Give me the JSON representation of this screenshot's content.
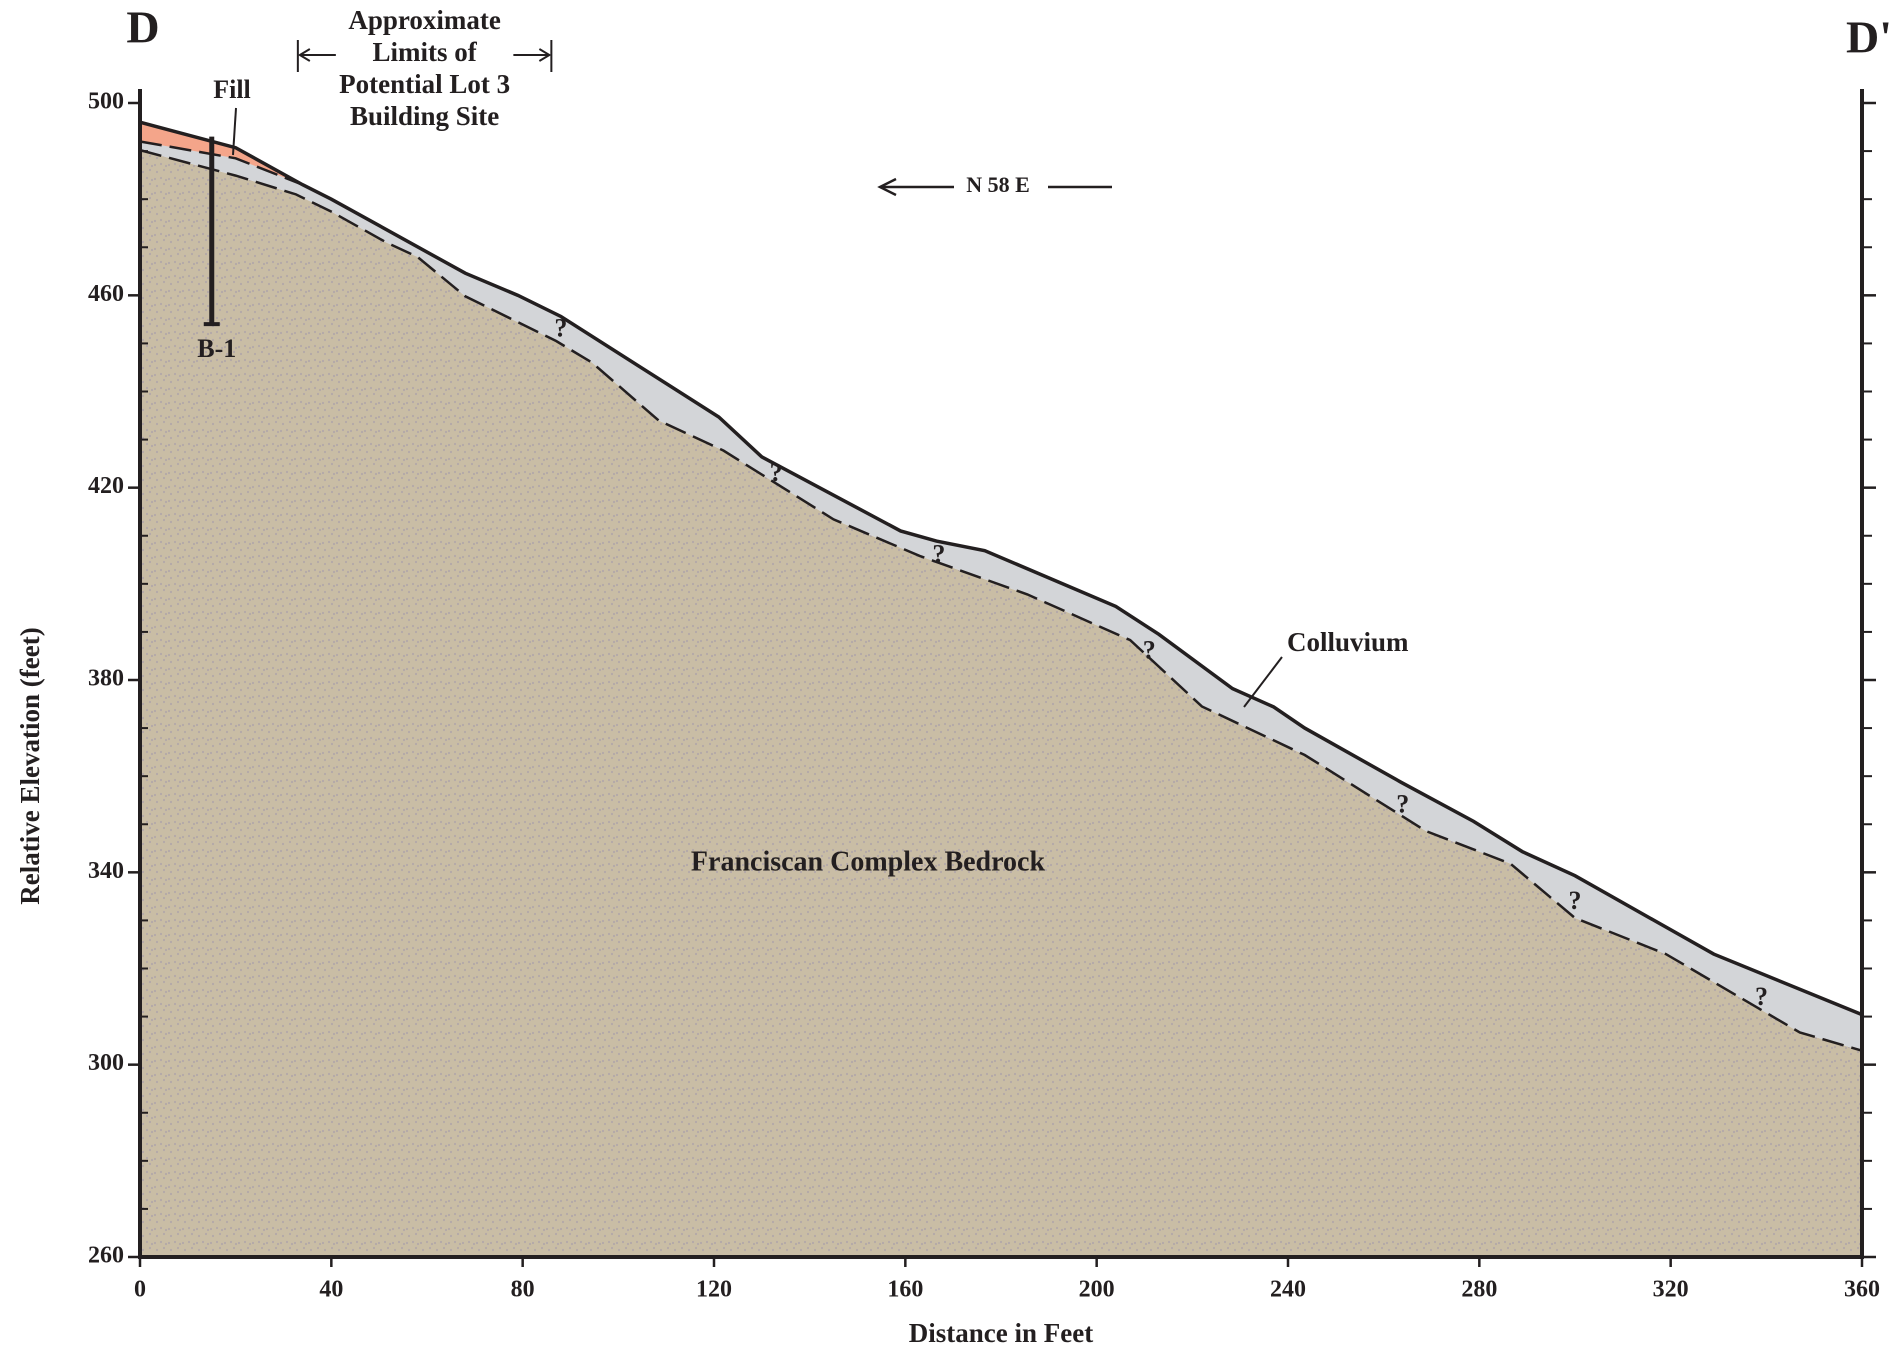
{
  "chart_data": {
    "type": "cross-section",
    "section_start": "D",
    "section_end": "D'",
    "x_label": "Distance in Feet",
    "y_label": "Relative Elevation (feet)",
    "xlim": [
      0,
      360
    ],
    "xticks": [
      0,
      40,
      80,
      120,
      160,
      200,
      240,
      280,
      320,
      360
    ],
    "ylim": [
      260,
      500
    ],
    "yticks": [
      260,
      300,
      340,
      380,
      420,
      460,
      500
    ],
    "y_minor_ticks": [
      270,
      280,
      290,
      310,
      320,
      330,
      350,
      360,
      370,
      390,
      400,
      410,
      430,
      440,
      450,
      470,
      480,
      490
    ],
    "direction": "N 58 E",
    "site_limits": {
      "label": [
        "Approximate",
        "Limits of",
        "Potential Lot 3",
        "Building Site"
      ],
      "x": [
        33,
        86
      ]
    },
    "surface": {
      "x": [
        0,
        20,
        34,
        40,
        68,
        79,
        88,
        121,
        130,
        159,
        166.5,
        176.6,
        204,
        213,
        228.4,
        237,
        243.5,
        263.7,
        278.8,
        289,
        300,
        329,
        360
      ],
      "y": [
        496,
        490.7,
        483,
        480,
        464.6,
        460,
        455.6,
        434.7,
        426.4,
        411,
        408.9,
        406.9,
        395.3,
        389.5,
        378.2,
        374.4,
        370,
        358.7,
        350.6,
        344.3,
        339.3,
        323,
        310.4
      ]
    },
    "fill_base": {
      "x": [
        0,
        20,
        34
      ],
      "y": [
        492,
        488.5,
        483
      ]
    },
    "bedrock_contact": {
      "x": [
        0,
        20,
        32.6,
        40,
        51.5,
        58,
        68,
        87,
        94.5,
        108.4,
        122,
        145,
        163,
        185.5,
        207,
        222,
        243.5,
        268.8,
        286.5,
        300,
        319,
        347,
        360
      ],
      "y": [
        490.2,
        484.9,
        481,
        477.4,
        471,
        468,
        459.8,
        450.5,
        446,
        434,
        427.7,
        413.4,
        405.8,
        397.8,
        388.3,
        374.5,
        364.4,
        348.6,
        341.8,
        330.5,
        323,
        306.7,
        302.9
      ]
    },
    "layers": [
      {
        "label": "Fill",
        "color": "#f4a58a"
      },
      {
        "label": "Colluvium",
        "color": "#d3d5d8"
      },
      {
        "label": "Franciscan Complex Bedrock",
        "color": "#c9bda5"
      }
    ],
    "uncertain_contacts": [
      {
        "label": "?",
        "x": 88,
        "y": 451
      },
      {
        "label": "?",
        "x": 133,
        "y": 421
      },
      {
        "label": "?",
        "x": 167,
        "y": 404
      },
      {
        "label": "?",
        "x": 211,
        "y": 384
      },
      {
        "label": "?",
        "x": 264,
        "y": 352
      },
      {
        "label": "?",
        "x": 300,
        "y": 332
      },
      {
        "label": "?",
        "x": 339,
        "y": 312
      }
    ],
    "borings": [
      {
        "name": "B-1",
        "x": 15,
        "top": 493,
        "bottom": 454
      }
    ]
  }
}
